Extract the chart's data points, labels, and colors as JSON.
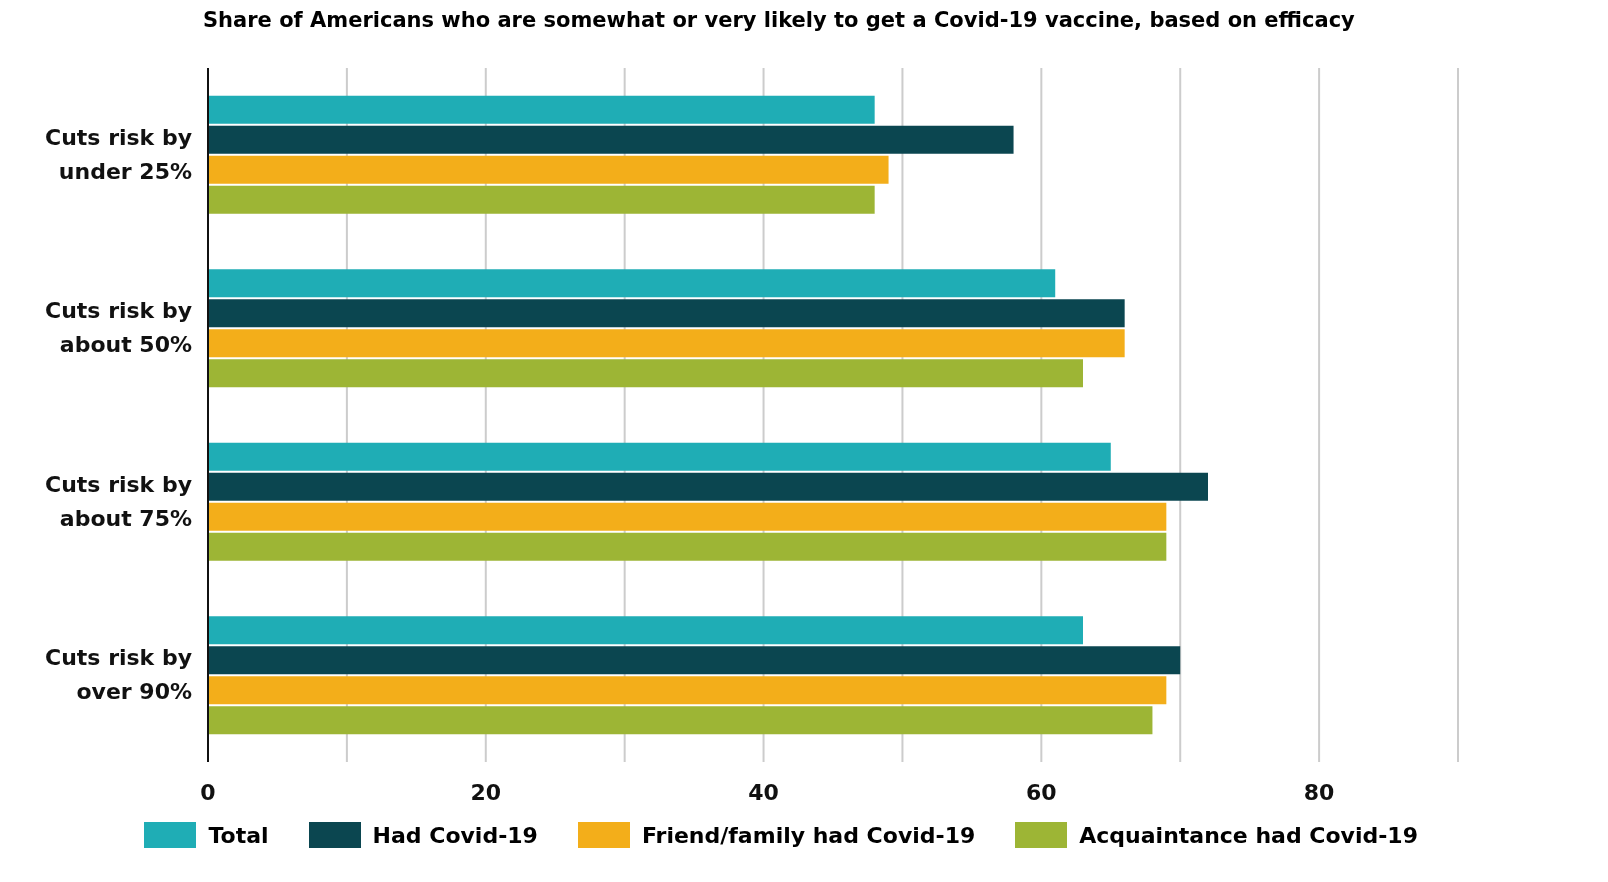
{
  "chart_data": {
    "type": "bar",
    "orientation": "horizontal",
    "title": "Share of Americans who are somewhat or very likely to get a Covid-19 vaccine, based on efficacy",
    "categories": [
      "Cuts risk by\nunder 25%",
      "Cuts risk by\nabout 50%",
      "Cuts risk by\nabout 75%",
      "Cuts risk by\nover 90%"
    ],
    "series": [
      {
        "name": "Total",
        "color": "#1fadb5",
        "values": [
          48,
          61,
          65,
          63
        ]
      },
      {
        "name": "Had Covid-19",
        "color": "#0b4650",
        "values": [
          58,
          66,
          72,
          70
        ]
      },
      {
        "name": "Friend/family had Covid-19",
        "color": "#f3ae1a",
        "values": [
          49,
          66,
          69,
          69
        ]
      },
      {
        "name": "Acquaintance had Covid-19",
        "color": "#9db535",
        "values": [
          48,
          63,
          69,
          68
        ]
      }
    ],
    "xlim": [
      0,
      90
    ],
    "xticks": [
      0,
      {
        "value": 10,
        "label": null
      },
      20,
      {
        "value": 30,
        "label": null
      },
      40,
      {
        "value": 50,
        "label": null
      },
      60,
      {
        "value": 70,
        "label": null
      },
      80,
      {
        "value": 90,
        "label": null
      }
    ],
    "grid": "x",
    "legend": "bottom"
  }
}
